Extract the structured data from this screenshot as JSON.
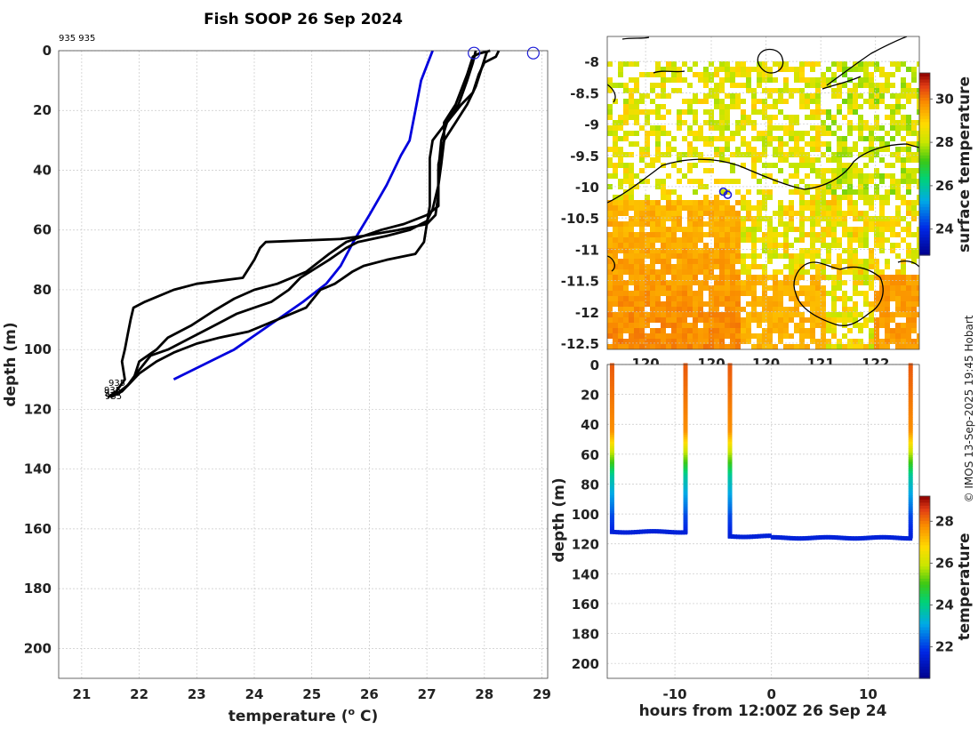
{
  "figure": {
    "title": "Fish SOOP 26 Sep 2024",
    "credit": "© IMOS 13-Sep-2025 19:45 Hobart",
    "colors": {
      "observed": "#000000",
      "climatology": "#0000dd",
      "marker": "#1a1ad8"
    }
  },
  "chart_data": [
    {
      "id": "profiles",
      "type": "line",
      "title": "Fish SOOP 26 Sep 2024",
      "top_note": "935 935",
      "xlabel": "temperature (",
      "xlabel_sup": "o",
      "xlabel_end": " C)",
      "ylabel": "depth (m)",
      "xlim": [
        20.6,
        29.1
      ],
      "ylim": [
        0,
        210
      ],
      "y_inverted": true,
      "xticks": [
        21,
        22,
        23,
        24,
        25,
        26,
        27,
        28,
        29
      ],
      "yticks": [
        0,
        20,
        40,
        60,
        80,
        100,
        120,
        140,
        160,
        180,
        200
      ],
      "bottom_labels": [
        "935",
        "935",
        "935",
        "935"
      ],
      "surface_markers": [
        {
          "temp": 27.82,
          "depth": 0.5
        },
        {
          "temp": 28.85,
          "depth": 0.5
        }
      ],
      "series": [
        {
          "name": "climatology",
          "color": "#0000dd",
          "points": [
            [
              27.1,
              0
            ],
            [
              27.0,
              5
            ],
            [
              26.9,
              10
            ],
            [
              26.8,
              20
            ],
            [
              26.7,
              30
            ],
            [
              26.55,
              35
            ],
            [
              26.3,
              45
            ],
            [
              26.0,
              55
            ],
            [
              25.75,
              63
            ],
            [
              25.5,
              72
            ],
            [
              25.25,
              78
            ],
            [
              24.85,
              84
            ],
            [
              24.4,
              90
            ],
            [
              23.65,
              100
            ],
            [
              22.6,
              110
            ]
          ]
        },
        {
          "name": "profile-1",
          "color": "#000000",
          "points": [
            [
              28.25,
              0
            ],
            [
              28.2,
              2
            ],
            [
              28.0,
              4
            ],
            [
              27.9,
              8
            ],
            [
              27.8,
              14
            ],
            [
              27.6,
              18
            ],
            [
              27.35,
              24
            ],
            [
              27.25,
              30
            ],
            [
              27.2,
              40
            ],
            [
              27.2,
              48
            ],
            [
              27.15,
              55
            ],
            [
              27.0,
              58
            ],
            [
              26.5,
              60
            ],
            [
              25.9,
              62
            ],
            [
              25.5,
              63
            ],
            [
              24.2,
              64
            ],
            [
              24.1,
              66
            ],
            [
              24.0,
              70
            ],
            [
              23.8,
              76
            ],
            [
              23.0,
              78
            ],
            [
              22.6,
              80
            ],
            [
              22.1,
              84
            ],
            [
              21.9,
              86
            ],
            [
              21.85,
              90
            ],
            [
              21.8,
              95
            ],
            [
              21.75,
              100
            ],
            [
              21.7,
              104
            ],
            [
              21.75,
              110
            ],
            [
              21.6,
              114
            ],
            [
              21.45,
              116
            ]
          ]
        },
        {
          "name": "profile-2",
          "color": "#000000",
          "points": [
            [
              28.05,
              0
            ],
            [
              28.0,
              3
            ],
            [
              27.95,
              6
            ],
            [
              27.85,
              12
            ],
            [
              27.7,
              18
            ],
            [
              27.5,
              24
            ],
            [
              27.3,
              30
            ],
            [
              27.25,
              38
            ],
            [
              27.2,
              45
            ],
            [
              27.2,
              52
            ],
            [
              27.0,
              55
            ],
            [
              26.6,
              58
            ],
            [
              26.2,
              60
            ],
            [
              25.9,
              62
            ],
            [
              25.6,
              64
            ],
            [
              25.3,
              68
            ],
            [
              24.9,
              74
            ],
            [
              24.4,
              78
            ],
            [
              24.0,
              80
            ],
            [
              23.65,
              83
            ],
            [
              23.3,
              87
            ],
            [
              22.9,
              92
            ],
            [
              22.5,
              96
            ],
            [
              22.3,
              100
            ],
            [
              22.0,
              104
            ],
            [
              21.9,
              110
            ],
            [
              21.7,
              114
            ],
            [
              21.5,
              116
            ]
          ]
        },
        {
          "name": "profile-3",
          "color": "#000000",
          "points": [
            [
              28.1,
              0
            ],
            [
              27.9,
              1
            ],
            [
              27.8,
              2
            ],
            [
              27.7,
              8
            ],
            [
              27.5,
              18
            ],
            [
              27.3,
              24
            ],
            [
              27.3,
              30
            ],
            [
              27.2,
              38
            ],
            [
              27.2,
              45
            ],
            [
              27.1,
              53
            ],
            [
              27.0,
              57
            ],
            [
              26.7,
              60
            ],
            [
              26.3,
              62
            ],
            [
              25.8,
              64
            ],
            [
              25.6,
              66
            ],
            [
              25.3,
              70
            ],
            [
              24.8,
              76
            ],
            [
              24.6,
              80
            ],
            [
              24.3,
              84
            ],
            [
              24.0,
              86
            ],
            [
              23.7,
              88
            ],
            [
              23.5,
              90
            ],
            [
              23.2,
              93
            ],
            [
              22.8,
              97
            ],
            [
              22.5,
              100
            ],
            [
              22.2,
              102
            ],
            [
              21.95,
              108
            ],
            [
              21.8,
              112
            ],
            [
              21.6,
              115
            ]
          ]
        },
        {
          "name": "profile-4",
          "color": "#000000",
          "points": [
            [
              27.85,
              0
            ],
            [
              27.8,
              4
            ],
            [
              27.7,
              10
            ],
            [
              27.55,
              18
            ],
            [
              27.3,
              25
            ],
            [
              27.1,
              30
            ],
            [
              27.05,
              36
            ],
            [
              27.05,
              44
            ],
            [
              27.05,
              52
            ],
            [
              27.0,
              58
            ],
            [
              26.95,
              64
            ],
            [
              26.8,
              68
            ],
            [
              26.3,
              70
            ],
            [
              25.9,
              72
            ],
            [
              25.7,
              74
            ],
            [
              25.4,
              78
            ],
            [
              25.15,
              80
            ],
            [
              24.9,
              86
            ],
            [
              24.4,
              90
            ],
            [
              23.9,
              94
            ],
            [
              23.4,
              96
            ],
            [
              23.0,
              98
            ],
            [
              22.6,
              101
            ],
            [
              22.3,
              104
            ],
            [
              22.0,
              108
            ],
            [
              21.8,
              112
            ],
            [
              21.6,
              115
            ]
          ]
        }
      ]
    },
    {
      "id": "sst-map",
      "type": "heatmap",
      "xlim": [
        119.35,
        122.2
      ],
      "ylim": [
        -12.6,
        -7.6
      ],
      "yticks": [
        -8,
        -8.5,
        -9,
        -9.5,
        -10,
        -10.5,
        -11,
        -11.5,
        -12,
        -12.5
      ],
      "yticklabels": [
        "-8",
        "-8.5",
        "-9",
        "-9.5",
        "-10",
        "-10.5",
        "-11",
        "-11.5",
        "-12",
        "-12.5"
      ],
      "xticks": [
        119.7,
        120.3,
        120.8,
        121.3,
        121.8
      ],
      "xticklabels": [
        "120",
        "120",
        "120",
        "121",
        "122"
      ],
      "colorbar": {
        "label": "surface temperature",
        "range": [
          22.8,
          31.2
        ],
        "ticks": [
          24,
          26,
          28,
          30
        ]
      },
      "track": [
        {
          "lon": 120.41,
          "lat": -10.08
        },
        {
          "lon": 120.45,
          "lat": -10.13
        }
      ]
    },
    {
      "id": "section",
      "type": "scatter",
      "xlabel": "hours from 12:00Z 26 Sep 24",
      "ylabel": "depth (m)",
      "xlim": [
        -17,
        15.3
      ],
      "ylim": [
        0,
        210
      ],
      "y_inverted": true,
      "xticks": [
        -10,
        0,
        10
      ],
      "yticks": [
        0,
        20,
        40,
        60,
        80,
        100,
        120,
        140,
        160,
        180,
        200
      ],
      "colorbar": {
        "label": "temperature",
        "range": [
          20.5,
          29.2
        ],
        "ticks": [
          22,
          24,
          26,
          28
        ]
      },
      "casts": [
        {
          "start": -16.5,
          "end": -8.9,
          "max_depth": 112.5
        },
        {
          "start": -4.3,
          "end": 14.4,
          "max_depth": 115.5
        }
      ]
    }
  ]
}
